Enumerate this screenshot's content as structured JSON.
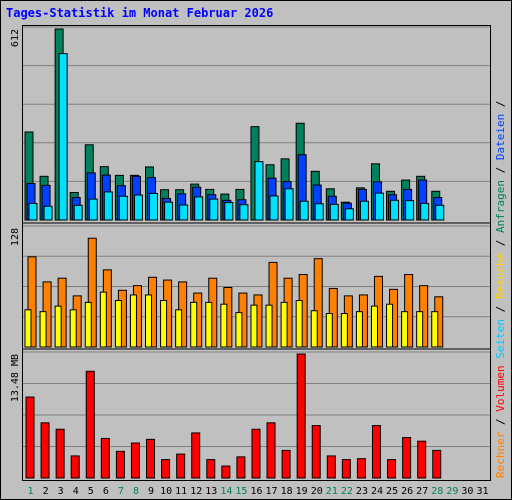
{
  "title": "Tages-Statistik im Monat Februar 2026",
  "ylabels": {
    "requests_max": "612",
    "pages_max": "128",
    "volume_max": "13.48 MB"
  },
  "legend": {
    "panel1": [
      {
        "text": "Anfragen",
        "color": "#00805c"
      },
      {
        "text": "/",
        "color": "#000000"
      },
      {
        "text": "Dateien",
        "color": "#0040ff"
      },
      {
        "text": "/",
        "color": "#000000"
      }
    ],
    "panel2": [
      {
        "text": "Seiten",
        "color": "#00c8ff"
      },
      {
        "text": "/",
        "color": "#000000"
      },
      {
        "text": "Besuche",
        "color": "#ffd200"
      },
      {
        "text": "/",
        "color": "#000000"
      }
    ],
    "panel3": [
      {
        "text": "Rechner",
        "color": "#ff8000"
      },
      {
        "text": "/",
        "color": "#000000"
      },
      {
        "text": "Volumen",
        "color": "#ff0000"
      }
    ]
  },
  "colors": {
    "background": "#c0c0c0",
    "grid": "#808080",
    "hits": "#00805c",
    "files": "#0040ff",
    "pages": "#00e0ff",
    "visits": "#ffff00",
    "sites": "#ff8000",
    "kbytes": "#ff0000",
    "title": "#0000ff",
    "weekday_label": "#000000",
    "weekend_label": "#00805c"
  },
  "chart_data": {
    "type": "bar",
    "categories": [
      "1",
      "2",
      "3",
      "4",
      "5",
      "6",
      "7",
      "8",
      "9",
      "10",
      "11",
      "12",
      "13",
      "14",
      "15",
      "16",
      "17",
      "18",
      "19",
      "20",
      "21",
      "22",
      "23",
      "24",
      "25",
      "26",
      "27",
      "28",
      "29",
      "30",
      "31"
    ],
    "weekend_days": [
      "1",
      "7",
      "8",
      "14",
      "15",
      "21",
      "22",
      "28",
      "29"
    ],
    "panels": [
      {
        "ylabel": "612",
        "ylim": [
          0,
          612
        ],
        "series": [
          {
            "name": "Anfragen",
            "values": [
              282,
              140,
              612,
              88,
              241,
              171,
              143,
              143,
              170,
              97,
              97,
              115,
              98,
              83,
              98,
              299,
              177,
              196,
              310,
              156,
              100,
              57,
              103,
              180,
              92,
              128,
              140,
              92,
              0,
              0,
              0
            ]
          },
          {
            "name": "Dateien",
            "values": [
              117,
              111,
              0,
              72,
              151,
              144,
              110,
              140,
              136,
              69,
              84,
              105,
              81,
              63,
              65,
              0,
              134,
              123,
              209,
              112,
              76,
              54,
              98,
              122,
              81,
              98,
              128,
              72,
              0,
              0,
              0
            ]
          },
          {
            "name": "Seiten",
            "values": [
              53,
              44,
              533,
              47,
              67,
              90,
              76,
              80,
              85,
              57,
              48,
              74,
              67,
              56,
              49,
              187,
              77,
              100,
              60,
              52,
              50,
              36,
              60,
              86,
              63,
              62,
              53,
              47,
              0,
              0,
              0
            ]
          }
        ]
      },
      {
        "ylabel": "128",
        "ylim": [
          0,
          128
        ],
        "series": [
          {
            "name": "Besuche",
            "values": [
              40,
              38,
              44,
              40,
              48,
              59,
              50,
              56,
              56,
              50,
              40,
              48,
              48,
              46,
              37,
              45,
              45,
              48,
              50,
              39,
              36,
              36,
              38,
              44,
              46,
              38,
              38,
              38,
              0,
              0,
              0
            ]
          },
          {
            "name": "Rechner",
            "values": [
              97,
              70,
              74,
              55,
              117,
              83,
              61,
              66,
              75,
              72,
              70,
              58,
              74,
              64,
              58,
              56,
              91,
              74,
              78,
              95,
              63,
              55,
              56,
              76,
              62,
              78,
              66,
              54,
              0,
              0,
              0
            ]
          }
        ]
      },
      {
        "ylabel": "13.48 MB",
        "ylim": [
          0,
          13.48
        ],
        "series": [
          {
            "name": "Volumen",
            "values": [
              8.8,
              6.0,
              5.3,
              2.4,
              11.6,
              4.3,
              2.9,
              3.8,
              4.2,
              2.0,
              2.6,
              4.9,
              2.0,
              1.3,
              2.3,
              5.3,
              6.0,
              3.0,
              13.48,
              5.7,
              2.4,
              2.0,
              2.1,
              5.7,
              2.0,
              4.4,
              4.0,
              3.0,
              0,
              0,
              0
            ]
          }
        ]
      }
    ]
  }
}
